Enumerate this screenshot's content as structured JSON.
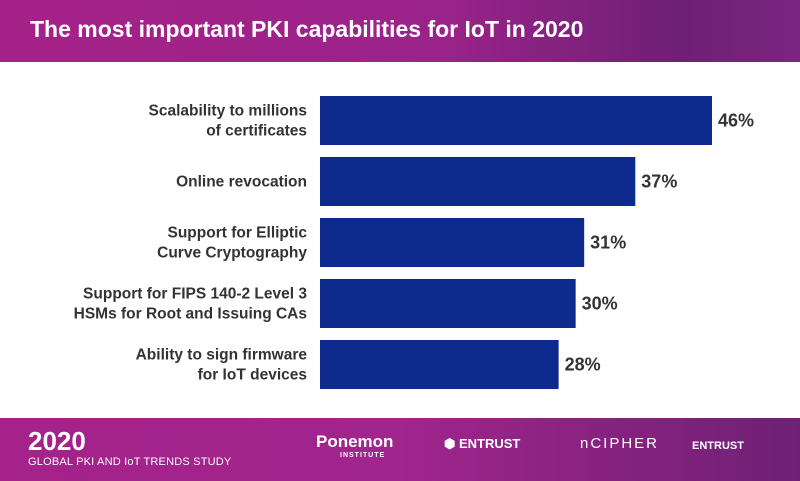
{
  "chart_data": {
    "type": "bar",
    "orientation": "horizontal",
    "title": "The most important PKI capabilities for IoT in 2020",
    "categories": [
      [
        "Scalability to millions",
        "of certificates"
      ],
      [
        "Online revocation"
      ],
      [
        "Support for Elliptic",
        "Curve Cryptography"
      ],
      [
        "Support for FIPS 140-2 Level 3",
        "HSMs for Root and Issuing CAs"
      ],
      [
        "Ability to sign firmware",
        "for IoT devices"
      ]
    ],
    "values": [
      46,
      37,
      31,
      30,
      28
    ],
    "value_labels": [
      "46%",
      "37%",
      "31%",
      "30%",
      "28%"
    ],
    "xlim": [
      0,
      55
    ],
    "grid": false,
    "bar_color": "#0e2a8c"
  },
  "footer": {
    "year": "2020",
    "subtitle": "GLOBAL PKI AND IoT TRENDS STUDY",
    "logos": [
      "Ponemon",
      "INSTITUTE",
      "ENTRUST",
      "nCIPHER",
      "ENTRUST"
    ]
  }
}
